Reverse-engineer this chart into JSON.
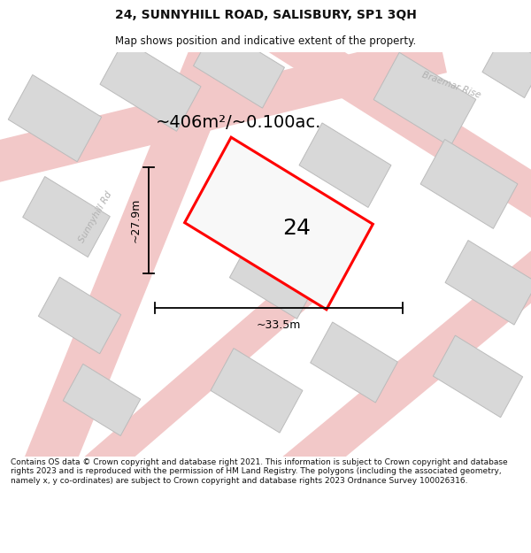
{
  "title": "24, SUNNYHILL ROAD, SALISBURY, SP1 3QH",
  "subtitle": "Map shows position and indicative extent of the property.",
  "area_text": "~406m²/~0.100ac.",
  "label_24": "24",
  "dim_width": "~33.5m",
  "dim_height": "~27.9m",
  "road_label_1": "Sunnyhill Rd",
  "road_label_2": "Braemar Rise",
  "footer": "Contains OS data © Crown copyright and database right 2021. This information is subject to Crown copyright and database rights 2023 and is reproduced with the permission of HM Land Registry. The polygons (including the associated geometry, namely x, y co-ordinates) are subject to Crown copyright and database rights 2023 Ordnance Survey 100026316.",
  "bg_color": "#ffffff",
  "map_bg": "#f7f7f7",
  "building_color": "#d8d8d8",
  "building_edge": "#bbbbbb",
  "road_color": "#f2c8c8",
  "plot_line": "#ff0000",
  "plot_fill": "#f8f8f8",
  "dim_color": "#111111",
  "title_color": "#111111",
  "footer_color": "#111111",
  "road_label_color": "#b0b0b0"
}
